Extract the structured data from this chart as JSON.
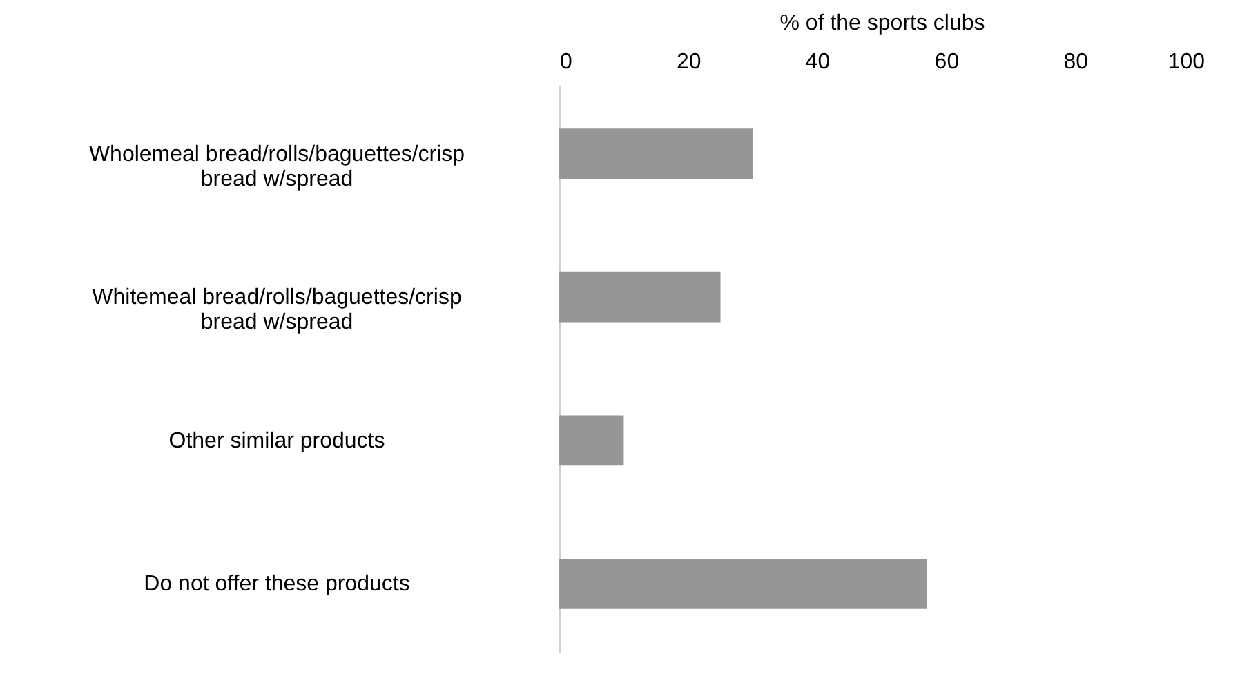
{
  "chart_data": {
    "type": "bar",
    "orientation": "horizontal",
    "xlabel": "% of the sports clubs",
    "categories": [
      "Wholemeal bread/rolls/baguettes/crisp bread w/spread",
      "Whitemeal bread/rolls/baguettes/crisp bread w/spread",
      "Other similar products",
      "Do not offer these products"
    ],
    "values": [
      30,
      25,
      10,
      57
    ],
    "color": "#969696",
    "xlim": [
      0,
      100
    ],
    "xticks": [
      0,
      20,
      40,
      60,
      80,
      100
    ],
    "grid": false
  }
}
